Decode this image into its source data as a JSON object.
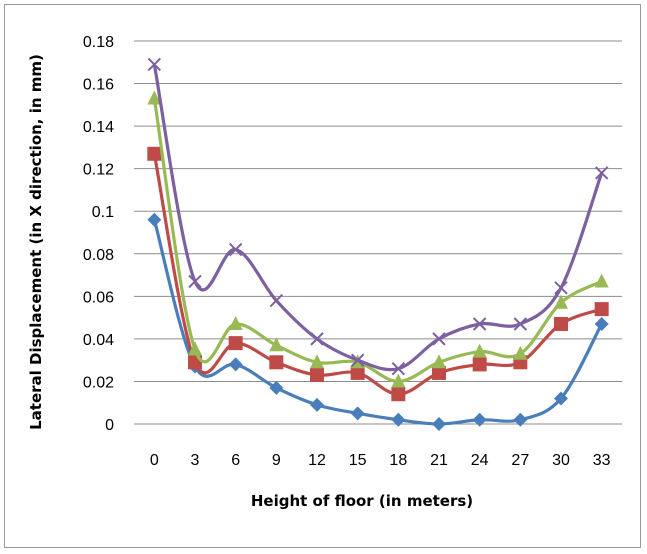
{
  "chart_data": {
    "type": "line",
    "title": "",
    "xlabel": "Height of floor (in meters)",
    "ylabel": "Lateral Displacement (in X direction, in mm)",
    "x": [
      0,
      3,
      6,
      9,
      12,
      15,
      18,
      21,
      24,
      27,
      30,
      33
    ],
    "ylim": [
      0,
      0.18
    ],
    "yticks": [
      "0",
      "0.02",
      "0.04",
      "0.06",
      "0.08",
      "0.1",
      "0.12",
      "0.14",
      "0.16",
      "0.18"
    ],
    "grid": "horizontal",
    "legend": "none",
    "series": [
      {
        "color": "#4a7ebb",
        "marker": "diamond",
        "values": [
          0.096,
          0.027,
          0.028,
          0.017,
          0.009,
          0.005,
          0.002,
          0.0,
          0.002,
          0.002,
          0.012,
          0.047
        ]
      },
      {
        "color": "#be4b48",
        "marker": "square",
        "values": [
          0.127,
          0.029,
          0.038,
          0.029,
          0.023,
          0.024,
          0.014,
          0.024,
          0.028,
          0.029,
          0.047,
          0.054
        ]
      },
      {
        "color": "#98b954",
        "marker": "triangle",
        "values": [
          0.153,
          0.035,
          0.047,
          0.037,
          0.029,
          0.029,
          0.02,
          0.029,
          0.034,
          0.033,
          0.057,
          0.067
        ]
      },
      {
        "color": "#7d60a0",
        "marker": "x",
        "values": [
          0.169,
          0.067,
          0.082,
          0.058,
          0.04,
          0.03,
          0.026,
          0.04,
          0.047,
          0.047,
          0.064,
          0.118
        ]
      }
    ]
  }
}
